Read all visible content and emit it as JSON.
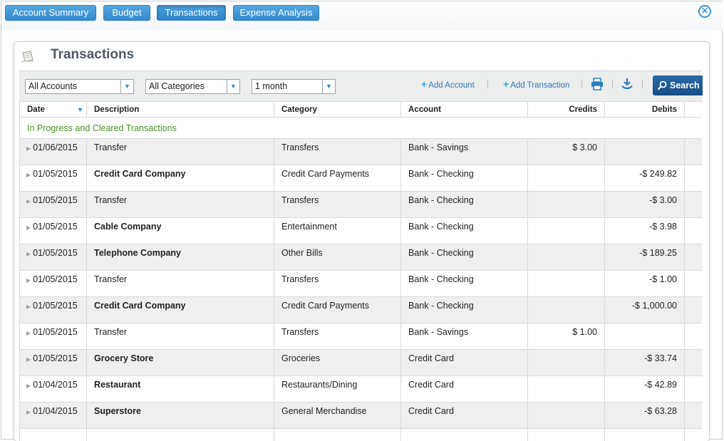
{
  "tabs": [
    {
      "label": "Account Summary"
    },
    {
      "label": "Budget"
    },
    {
      "label": "Transactions"
    },
    {
      "label": "Expense Analysis"
    }
  ],
  "close_label": "✕",
  "page_title": "Transactions",
  "filters": {
    "accounts": "All Accounts",
    "categories": "All Categories",
    "period": "1 month"
  },
  "toolbar": {
    "add_account": "Add Account",
    "add_transaction": "Add Transaction",
    "search_label": "Search"
  },
  "columns": {
    "date": "Date",
    "description": "Description",
    "category": "Category",
    "account": "Account",
    "credits": "Credits",
    "debits": "Debits"
  },
  "section_label": "In Progress and Cleared Transactions",
  "rows": [
    {
      "date": "01/06/2015",
      "description": "Transfer",
      "category": "Transfers",
      "account": "Bank - Savings",
      "credit": "$ 3.00",
      "debit": ""
    },
    {
      "date": "01/05/2015",
      "description": "Credit Card Company",
      "category": "Credit Card Payments",
      "account": "Bank - Checking",
      "credit": "",
      "debit": "-$ 249.82"
    },
    {
      "date": "01/05/2015",
      "description": "Transfer",
      "category": "Transfers",
      "account": "Bank - Checking",
      "credit": "",
      "debit": "-$ 3.00"
    },
    {
      "date": "01/05/2015",
      "description": "Cable Company",
      "category": "Entertainment",
      "account": "Bank - Checking",
      "credit": "",
      "debit": "-$ 3.98"
    },
    {
      "date": "01/05/2015",
      "description": "Telephone Company",
      "category": "Other Bills",
      "account": "Bank - Checking",
      "credit": "",
      "debit": "-$ 189.25"
    },
    {
      "date": "01/05/2015",
      "description": "Transfer",
      "category": "Transfers",
      "account": "Bank - Checking",
      "credit": "",
      "debit": "-$ 1.00"
    },
    {
      "date": "01/05/2015",
      "description": "Credit Card Company",
      "category": "Credit Card Payments",
      "account": "Bank - Checking",
      "credit": "",
      "debit": "-$ 1,000.00"
    },
    {
      "date": "01/05/2015",
      "description": "Transfer",
      "category": "Transfers",
      "account": "Bank - Savings",
      "credit": "$ 1.00",
      "debit": ""
    },
    {
      "date": "01/05/2015",
      "description": "Grocery Store",
      "category": "Groceries",
      "account": "Credit Card",
      "credit": "",
      "debit": "-$ 33.74"
    },
    {
      "date": "01/04/2015",
      "description": "Restaurant",
      "category": "Restaurants/Dining",
      "account": "Credit Card",
      "credit": "",
      "debit": "-$ 42.89"
    },
    {
      "date": "01/04/2015",
      "description": "Superstore",
      "category": "General Merchandise",
      "account": "Credit Card",
      "credit": "",
      "debit": "-$ 63.28"
    },
    {
      "date": "",
      "description": "",
      "category": "",
      "account": "",
      "credit": "",
      "debit": ""
    }
  ],
  "colors": {
    "tab_blue": "#3b8fd1",
    "section_green": "#4b8f2a",
    "search_navy": "#1a5a94",
    "link_blue": "#2f78b8"
  }
}
